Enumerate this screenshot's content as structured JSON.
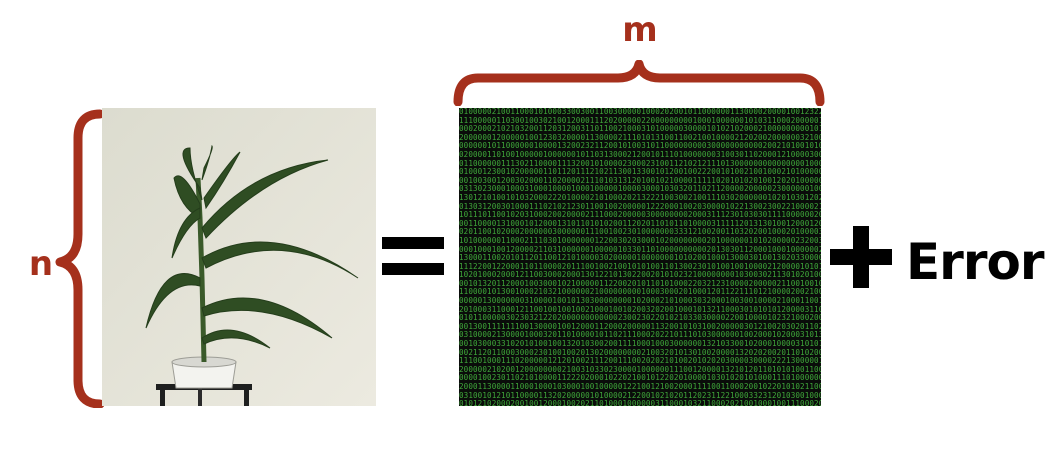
{
  "equation": {
    "dim_m": "m",
    "dim_n": "n",
    "equals_symbol": "=",
    "plus_symbol": "+",
    "error_term": "Error"
  },
  "colors": {
    "brace": "#A5301C",
    "matrix_background": "#0a0c0a",
    "matrix_digits": "#3fa83a",
    "operators": "#000000"
  },
  "icons": {
    "photo": "corn-plant-photo",
    "matrix": "numeric-matrix-image"
  }
}
